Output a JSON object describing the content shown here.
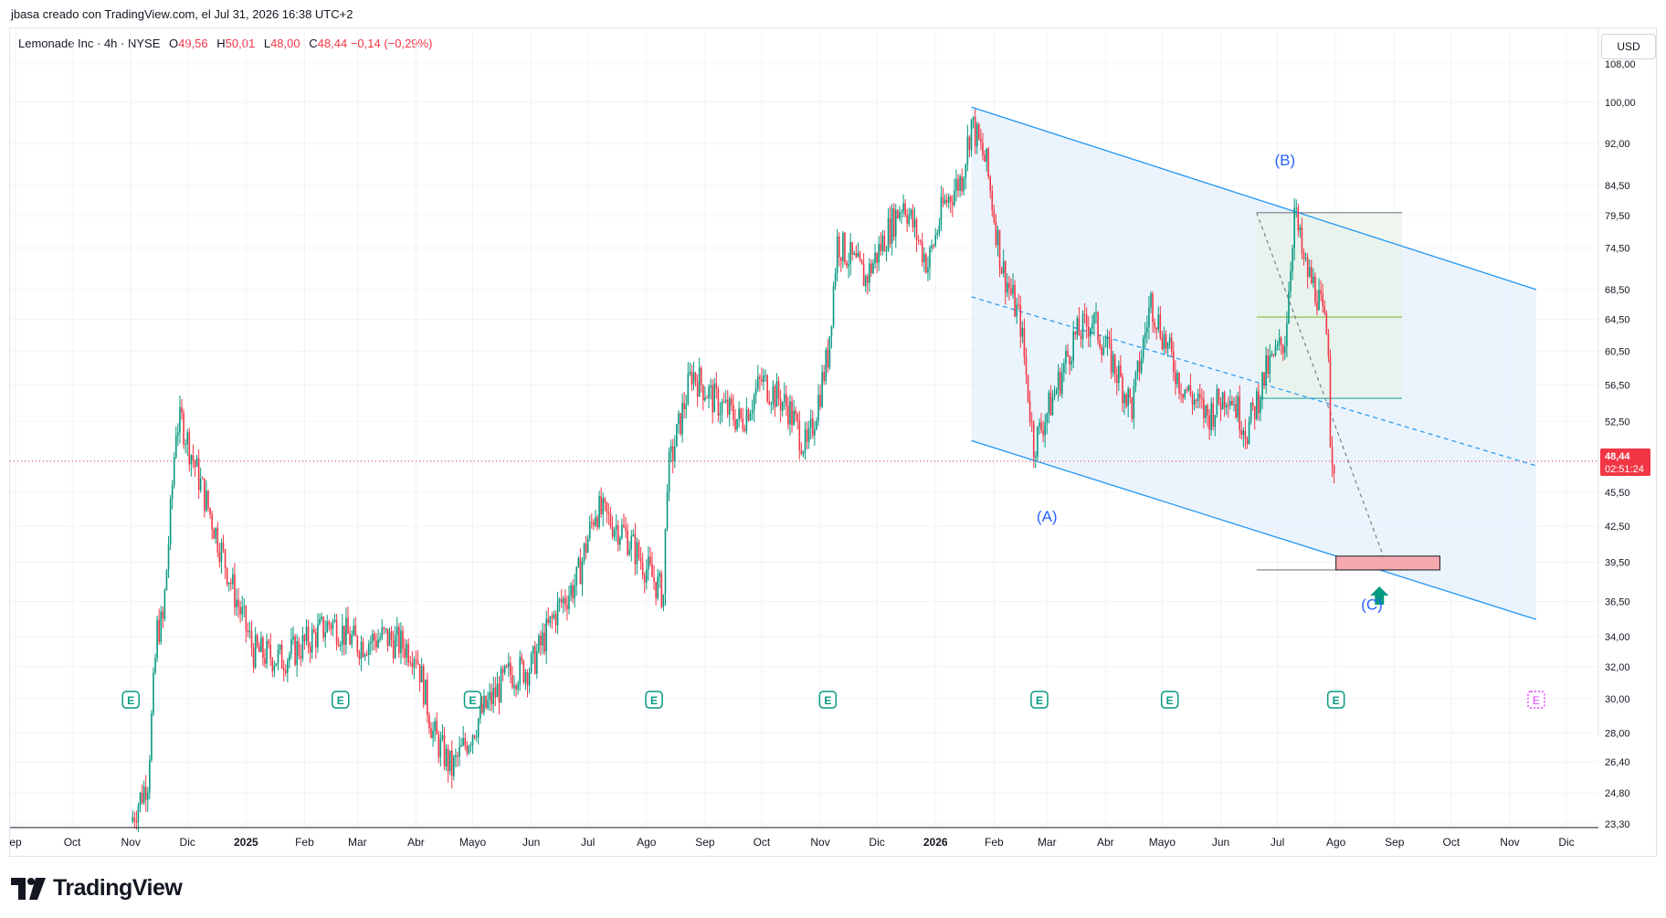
{
  "header": {
    "credit": "jbasa creado con TradingView.com, el Jul 31, 2026 16:38 UTC+2"
  },
  "symbol": {
    "name": "Lemonade Inc · 4h · NYSE",
    "open_label": "O",
    "open": "49,56",
    "high_label": "H",
    "high": "50,01",
    "low_label": "L",
    "low": "48,00",
    "close_label": "C",
    "close": "48,44",
    "change": "−0,14 (−0,29%)"
  },
  "currency": "USD",
  "price_badge": {
    "price": "48,44",
    "countdown": "02:51:24",
    "color": "#f23645"
  },
  "footer": {
    "logo_text": "TradingView"
  },
  "colors": {
    "up": "#089981",
    "down": "#f23645",
    "channel": "#2196f3",
    "channel_fill": "#e3f0fb",
    "target_box": "#f7a9b0",
    "green_line": "#8bc34a",
    "arrow": "#089981",
    "wave_label": "#2962ff"
  },
  "chart_data": {
    "type": "candlestick",
    "title": "Lemonade Inc · 4h · NYSE",
    "y_scale": "log",
    "ylim": [
      23.3,
      108.0
    ],
    "y_ticks": [
      "108,00",
      "100,00",
      "92,00",
      "84,50",
      "79,50",
      "74,50",
      "68,50",
      "64,50",
      "60,50",
      "56,50",
      "52,50",
      "48,50",
      "45,50",
      "42,50",
      "39,50",
      "36,50",
      "34,00",
      "32,00",
      "30,00",
      "28,00",
      "26,40",
      "24,80",
      "23,30"
    ],
    "x_ticks": [
      "ep",
      "Oct",
      "Nov",
      "Dic",
      "2025",
      "Feb",
      "Mar",
      "Abr",
      "Mayo",
      "Jun",
      "Jul",
      "Ago",
      "Sep",
      "Oct",
      "Nov",
      "Dic",
      "2026",
      "Feb",
      "Mar",
      "Abr",
      "Mayo",
      "Jun",
      "Jul",
      "Ago",
      "Sep",
      "Oct",
      "Nov",
      "Dic"
    ],
    "bold_x_ticks": [
      "2025",
      "2026"
    ],
    "series": [
      {
        "values": [
          [
            "2024-11-01",
            23.4
          ],
          [
            "2024-11-10",
            25.5
          ],
          [
            "2024-11-15",
            34.5
          ],
          [
            "2024-11-18",
            35.0
          ],
          [
            "2024-11-22",
            43.5
          ],
          [
            "2024-11-25",
            52.0
          ],
          [
            "2024-11-28",
            52.5
          ],
          [
            "2024-12-05",
            48.0
          ],
          [
            "2024-12-15",
            42.5
          ],
          [
            "2024-12-25",
            37.5
          ],
          [
            "2025-01-05",
            33.0
          ],
          [
            "2025-01-20",
            32.5
          ],
          [
            "2025-02-01",
            33.5
          ],
          [
            "2025-02-15",
            35.0
          ],
          [
            "2025-03-01",
            33.5
          ],
          [
            "2025-03-15",
            34.0
          ],
          [
            "2025-04-01",
            33.0
          ],
          [
            "2025-04-10",
            28.0
          ],
          [
            "2025-04-20",
            26.0
          ],
          [
            "2025-05-05",
            29.0
          ],
          [
            "2025-05-20",
            31.5
          ],
          [
            "2025-06-01",
            32.0
          ],
          [
            "2025-06-15",
            36.0
          ],
          [
            "2025-06-25",
            38.0
          ],
          [
            "2025-07-05",
            44.0
          ],
          [
            "2025-07-20",
            42.0
          ],
          [
            "2025-08-01",
            39.0
          ],
          [
            "2025-08-10",
            37.0
          ],
          [
            "2025-08-12",
            47.0
          ],
          [
            "2025-08-25",
            58.0
          ],
          [
            "2025-09-05",
            55.0
          ],
          [
            "2025-09-20",
            52.5
          ],
          [
            "2025-10-01",
            57.0
          ],
          [
            "2025-10-15",
            54.0
          ],
          [
            "2025-10-25",
            49.5
          ],
          [
            "2025-11-05",
            60.0
          ],
          [
            "2025-11-10",
            75.5
          ],
          [
            "2025-11-25",
            70.0
          ],
          [
            "2025-12-05",
            76.0
          ],
          [
            "2025-12-15",
            82.0
          ],
          [
            "2025-12-28",
            72.0
          ],
          [
            "2026-01-05",
            81.0
          ],
          [
            "2026-01-15",
            86.0
          ],
          [
            "2026-01-20",
            96.0
          ],
          [
            "2026-01-28",
            88.0
          ],
          [
            "2026-02-05",
            72.0
          ],
          [
            "2026-02-15",
            64.0
          ],
          [
            "2026-02-22",
            50.0
          ],
          [
            "2026-03-05",
            55.5
          ],
          [
            "2026-03-15",
            62.0
          ],
          [
            "2026-03-25",
            64.5
          ],
          [
            "2026-04-05",
            59.0
          ],
          [
            "2026-04-15",
            54.0
          ],
          [
            "2026-04-25",
            67.0
          ],
          [
            "2026-05-10",
            57.0
          ],
          [
            "2026-05-25",
            53.0
          ],
          [
            "2026-06-05",
            56.0
          ],
          [
            "2026-06-15",
            51.5
          ],
          [
            "2026-06-25",
            58.0
          ],
          [
            "2026-07-05",
            62.0
          ],
          [
            "2026-07-10",
            80.5
          ],
          [
            "2026-07-15",
            72.0
          ],
          [
            "2026-07-22",
            68.0
          ],
          [
            "2026-07-28",
            61.5
          ],
          [
            "2026-07-29",
            51.0
          ],
          [
            "2026-07-31",
            48.44
          ]
        ]
      }
    ],
    "earnings_markers": [
      "E",
      "E",
      "E",
      "E",
      "E",
      "E",
      "E",
      "E",
      "E"
    ],
    "annotations": {
      "wave_a": "(A)",
      "wave_b": "(B)",
      "wave_c": "(C)"
    },
    "current_price": 48.44,
    "target_zone": [
      38.9,
      40.0
    ],
    "channel": {
      "upper": [
        [
          "2026-01-20",
          99.0
        ],
        [
          "2026-11-15",
          68.5
        ]
      ],
      "mid": [
        [
          "2026-01-20",
          67.5
        ],
        [
          "2026-11-15",
          48.0
        ]
      ],
      "lower": [
        [
          "2026-01-20",
          50.5
        ],
        [
          "2026-11-15",
          35.2
        ]
      ]
    },
    "levels": [
      80.0,
      64.8,
      55.0,
      38.9
    ]
  }
}
